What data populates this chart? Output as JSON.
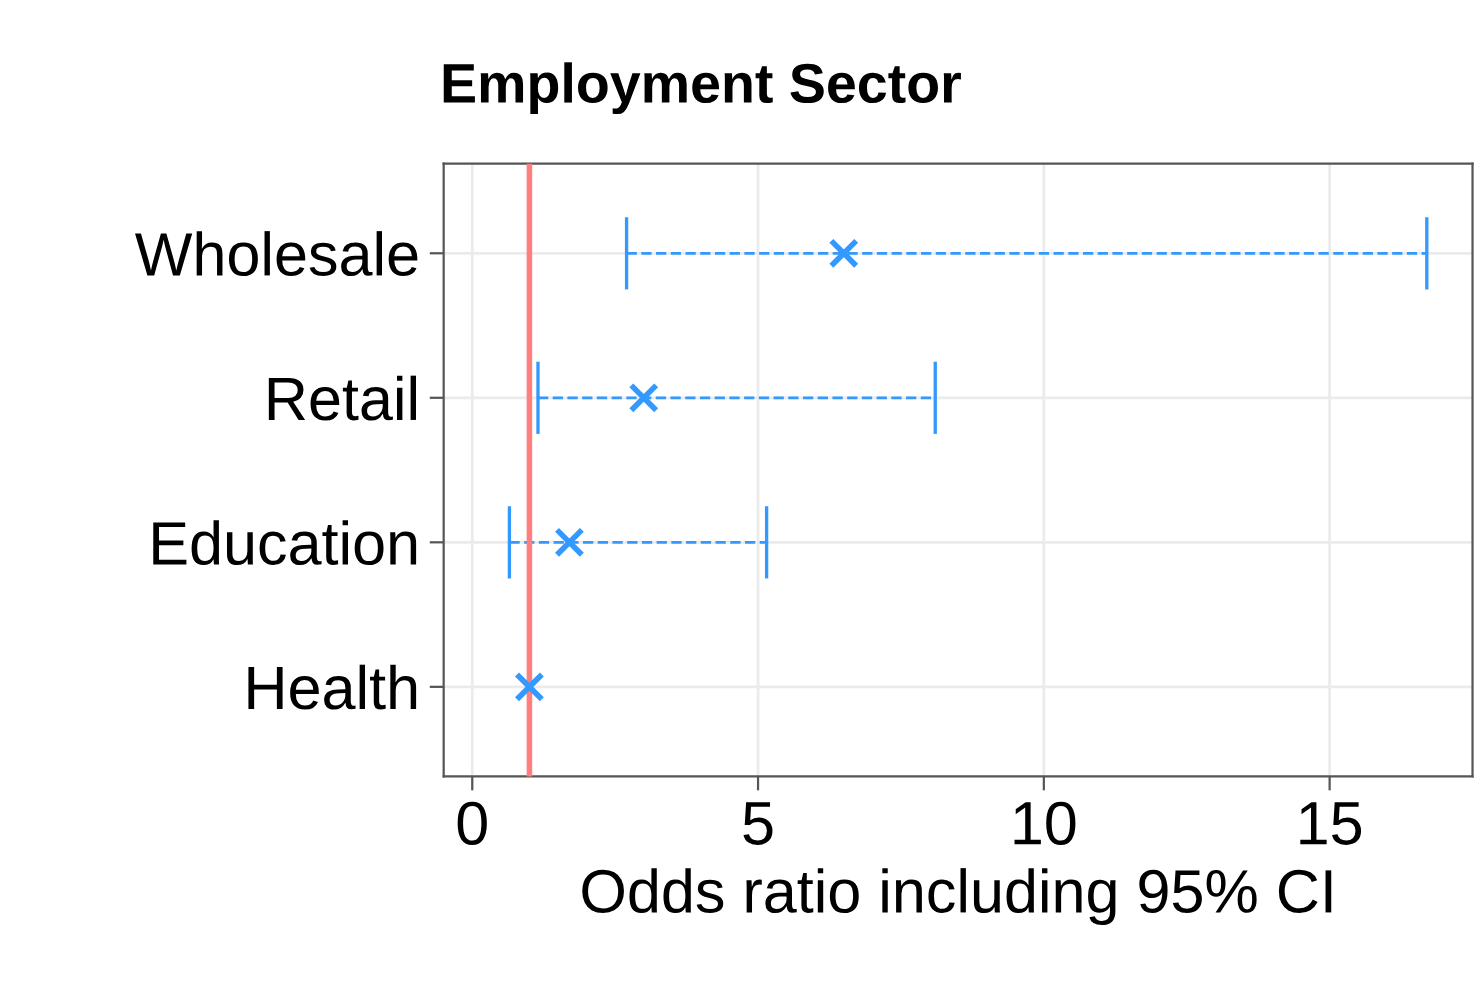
{
  "chart_data": {
    "type": "scatter",
    "title": "Employment Sector",
    "xlabel": "Odds ratio including 95% CI",
    "orientation": "horizontal",
    "categories": [
      "Wholesale",
      "Retail",
      "Education",
      "Health"
    ],
    "color": "#3399ff",
    "values": [
      6.5,
      3.0,
      1.7,
      1.0
    ],
    "errors": [
      [
        2.7,
        16.7
      ],
      [
        1.15,
        8.1
      ],
      [
        0.65,
        5.15
      ],
      null
    ],
    "xlim": [
      -0.5,
      17.5
    ],
    "xticks": [
      0,
      5,
      10,
      15
    ],
    "ref_lines": [
      {
        "axis": "x",
        "value": 1,
        "color": "#ff7f7f"
      }
    ],
    "grid": true,
    "marker": "cross",
    "line_style": "dashed"
  }
}
